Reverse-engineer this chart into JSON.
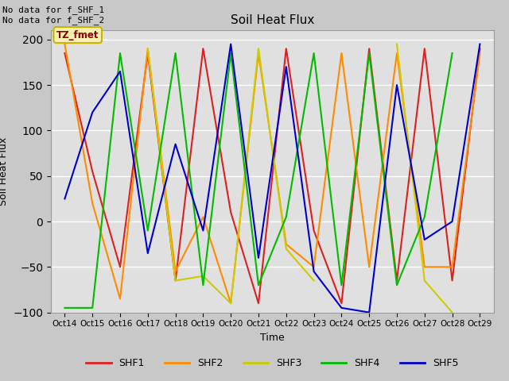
{
  "title": "Soil Heat Flux",
  "xlabel": "Time",
  "ylabel": "Soil Heat Flux",
  "ylim": [
    -100,
    210
  ],
  "yticks": [
    -100,
    -50,
    0,
    50,
    100,
    150,
    200
  ],
  "annotation_text": "No data for f_SHF_1\nNo data for f_SHF_2",
  "legend_box_text": "TZ_fmet",
  "legend_box_color": "#f5f0b0",
  "legend_box_text_color": "#8b0000",
  "legend_box_edge_color": "#c8b400",
  "background_color": "#c8c8c8",
  "plot_bg_color": "#e0e0e0",
  "grid_color": "#ffffff",
  "series_colors": {
    "SHF1": "#dd2020",
    "SHF2": "#ff8c00",
    "SHF3": "#cccc00",
    "SHF4": "#00bb00",
    "SHF5": "#0000cc"
  },
  "x_tick_labels": [
    "Oct 14",
    "Oct 15",
    "Oct 16",
    "Oct 17",
    "Oct 18",
    "Oct 19",
    "Oct 20",
    "Oct 21",
    "Oct 22",
    "Oct 23",
    "Oct 24",
    "Oct 25",
    "Oct 26",
    "Oct 27",
    "Oct 28",
    "Oct 29"
  ],
  "x_values": [
    14,
    15,
    16,
    17,
    18,
    19,
    20,
    21,
    22,
    23,
    24,
    25,
    26,
    27,
    28,
    29
  ],
  "SHF1": [
    185,
    55,
    -50,
    185,
    -65,
    190,
    10,
    -90,
    190,
    -10,
    -90,
    190,
    -65,
    190,
    -65,
    190
  ],
  "SHF2": [
    195,
    20,
    -85,
    190,
    -55,
    5,
    -90,
    185,
    -25,
    -50,
    185,
    -50,
    185,
    -50,
    -50,
    185
  ],
  "SHF3": [
    null,
    null,
    null,
    190,
    -65,
    -60,
    -90,
    190,
    -30,
    -65,
    null,
    null,
    195,
    -65,
    -100,
    null
  ],
  "SHF4": [
    -95,
    -95,
    185,
    -10,
    185,
    -70,
    185,
    -70,
    5,
    185,
    -70,
    185,
    -70,
    5,
    185,
    null
  ],
  "SHF5": [
    25,
    120,
    165,
    -35,
    85,
    -10,
    195,
    -40,
    170,
    -55,
    -95,
    -100,
    150,
    -20,
    0,
    195
  ]
}
